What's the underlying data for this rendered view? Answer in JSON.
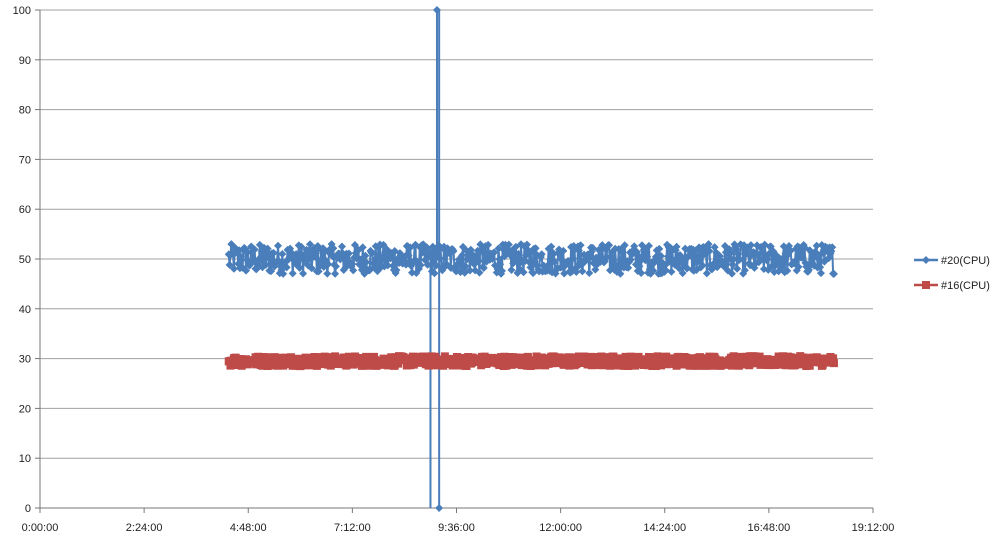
{
  "chart_data": {
    "type": "line",
    "title": "",
    "xlabel": "",
    "ylabel": "",
    "xlim_hours": [
      0,
      19.2
    ],
    "ylim": [
      0,
      100
    ],
    "y_ticks": [
      0,
      10,
      20,
      30,
      40,
      50,
      60,
      70,
      80,
      90,
      100
    ],
    "x_tick_labels": [
      "0:00:00",
      "2:24:00",
      "4:48:00",
      "7:12:00",
      "9:36:00",
      "12:00:00",
      "14:24:00",
      "16:48:00",
      "19:12:00"
    ],
    "grid": "horizontal",
    "legend_position": "right",
    "series": [
      {
        "name": "#20(CPU)",
        "color": "#4a7ebb",
        "marker": "diamond",
        "x_start_hours": 4.35,
        "x_end_hours": 18.3,
        "baseline": 50,
        "spread": 3,
        "spike": {
          "at_hours": 9.15,
          "value": 100,
          "drop_hours": [
            9.0,
            9.2
          ],
          "drop_value": 0
        }
      },
      {
        "name": "#16(CPU)",
        "color": "#be4b48",
        "marker": "square",
        "x_start_hours": 4.35,
        "x_end_hours": 18.3,
        "baseline": 29.5,
        "spread": 1
      }
    ]
  }
}
